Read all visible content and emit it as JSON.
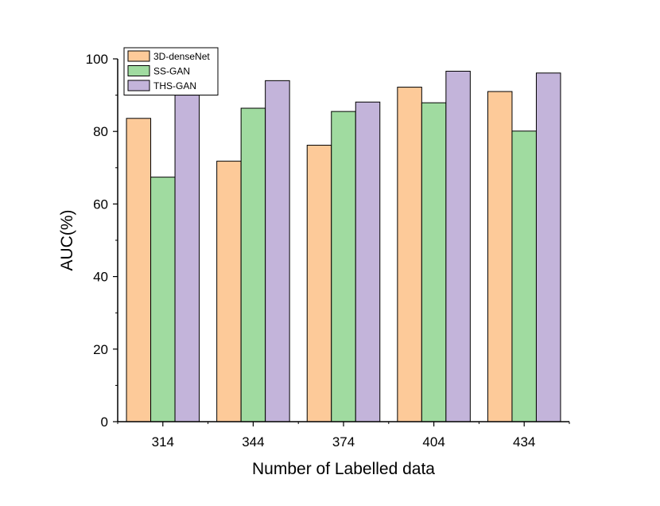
{
  "chart_data": {
    "type": "bar",
    "title": "",
    "xlabel": "Number of Labelled data",
    "ylabel": "AUC(%)",
    "categories": [
      "314",
      "344",
      "374",
      "404",
      "434"
    ],
    "ylim": [
      0,
      100
    ],
    "yticks": [
      "0",
      "20",
      "40",
      "60",
      "80",
      "100"
    ],
    "legend_position": "top-left",
    "grid": false,
    "series": [
      {
        "name": "3D-denseNet",
        "color": "#FDCA99",
        "values": [
          83.6,
          71.8,
          76.2,
          92.2,
          91.0
        ]
      },
      {
        "name": "SS-GAN",
        "color": "#A0DBA0",
        "values": [
          67.4,
          86.4,
          85.5,
          87.9,
          80.1
        ]
      },
      {
        "name": "THS-GAN",
        "color": "#C3B4DA",
        "values": [
          90.0,
          94.0,
          88.1,
          96.6,
          96.1
        ]
      }
    ]
  }
}
